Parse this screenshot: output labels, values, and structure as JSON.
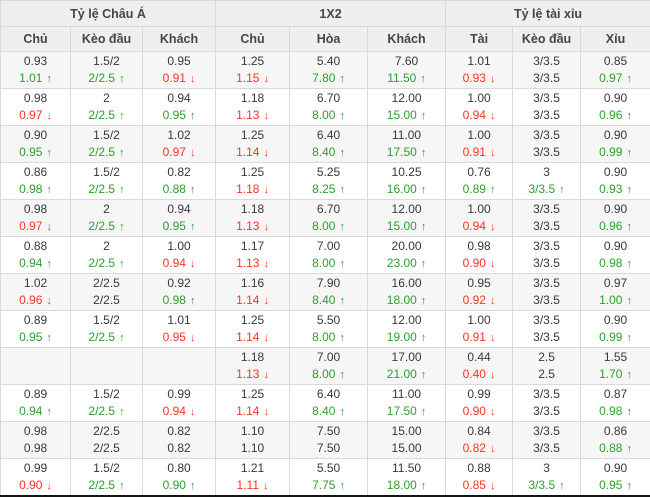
{
  "table": {
    "colors": {
      "up": "#2e9e2e",
      "down": "#ff3322",
      "header_bg": "#efefef",
      "row_alt_bg": "#f6f6f6",
      "border": "#d9d9d9",
      "text": "#383838"
    },
    "icons": {
      "up": "↑",
      "down": "↓"
    },
    "groups": [
      {
        "label": "Tỷ lệ Châu Á",
        "columns": [
          "Chủ",
          "Kèo đầu",
          "Khách"
        ]
      },
      {
        "label": "1X2",
        "columns": [
          "Chủ",
          "Hòa",
          "Khách"
        ]
      },
      {
        "label": "Tỷ lệ tài xỉu",
        "columns": [
          "Tài",
          "Kèo đầu",
          "Xỉu"
        ]
      }
    ],
    "rows": [
      {
        "cells": [
          [
            "0.93",
            "1.01",
            "up"
          ],
          [
            "1.5/2",
            "2/2.5",
            "up"
          ],
          [
            "0.95",
            "0.91",
            "down"
          ],
          [
            "1.25",
            "1.15",
            "down"
          ],
          [
            "5.40",
            "7.80",
            "up"
          ],
          [
            "7.60",
            "11.50",
            "up"
          ],
          [
            "1.01",
            "0.93",
            "down"
          ],
          [
            "3/3.5",
            "3/3.5",
            "same"
          ],
          [
            "0.85",
            "0.97",
            "up"
          ]
        ]
      },
      {
        "cells": [
          [
            "0.98",
            "0.97",
            "down"
          ],
          [
            "2",
            "2/2.5",
            "up"
          ],
          [
            "0.94",
            "0.95",
            "up"
          ],
          [
            "1.18",
            "1.13",
            "down"
          ],
          [
            "6.70",
            "8.00",
            "up"
          ],
          [
            "12.00",
            "15.00",
            "up"
          ],
          [
            "1.00",
            "0.94",
            "down"
          ],
          [
            "3/3.5",
            "3/3.5",
            "same"
          ],
          [
            "0.90",
            "0.96",
            "up"
          ]
        ]
      },
      {
        "cells": [
          [
            "0.90",
            "0.95",
            "up"
          ],
          [
            "1.5/2",
            "2/2.5",
            "up"
          ],
          [
            "1.02",
            "0.97",
            "down"
          ],
          [
            "1.25",
            "1.14",
            "down"
          ],
          [
            "6.40",
            "8.40",
            "up"
          ],
          [
            "11.00",
            "17.50",
            "up"
          ],
          [
            "1.00",
            "0.91",
            "down"
          ],
          [
            "3/3.5",
            "3/3.5",
            "same"
          ],
          [
            "0.90",
            "0.99",
            "up"
          ]
        ]
      },
      {
        "cells": [
          [
            "0.86",
            "0.98",
            "up"
          ],
          [
            "1.5/2",
            "2/2.5",
            "up"
          ],
          [
            "0.82",
            "0.88",
            "up"
          ],
          [
            "1.25",
            "1.18",
            "down"
          ],
          [
            "5.25",
            "8.25",
            "up"
          ],
          [
            "10.25",
            "16.00",
            "up"
          ],
          [
            "0.76",
            "0.89",
            "up"
          ],
          [
            "3",
            "3/3.5",
            "up"
          ],
          [
            "0.90",
            "0.93",
            "up"
          ]
        ]
      },
      {
        "cells": [
          [
            "0.98",
            "0.97",
            "down"
          ],
          [
            "2",
            "2/2.5",
            "up"
          ],
          [
            "0.94",
            "0.95",
            "up"
          ],
          [
            "1.18",
            "1.13",
            "down"
          ],
          [
            "6.70",
            "8.00",
            "up"
          ],
          [
            "12.00",
            "15.00",
            "up"
          ],
          [
            "1.00",
            "0.94",
            "down"
          ],
          [
            "3/3.5",
            "3/3.5",
            "same"
          ],
          [
            "0.90",
            "0.96",
            "up"
          ]
        ]
      },
      {
        "cells": [
          [
            "0.88",
            "0.94",
            "up"
          ],
          [
            "2",
            "2/2.5",
            "up"
          ],
          [
            "1.00",
            "0.94",
            "down"
          ],
          [
            "1.17",
            "1.13",
            "down"
          ],
          [
            "7.00",
            "8.00",
            "up"
          ],
          [
            "20.00",
            "23.00",
            "up"
          ],
          [
            "0.98",
            "0.90",
            "down"
          ],
          [
            "3/3.5",
            "3/3.5",
            "same"
          ],
          [
            "0.90",
            "0.98",
            "up"
          ]
        ]
      },
      {
        "cells": [
          [
            "1.02",
            "0.96",
            "down"
          ],
          [
            "2/2.5",
            "2/2.5",
            "same"
          ],
          [
            "0.92",
            "0.98",
            "up"
          ],
          [
            "1.16",
            "1.14",
            "down"
          ],
          [
            "7.90",
            "8.40",
            "up"
          ],
          [
            "16.00",
            "18.00",
            "up"
          ],
          [
            "0.95",
            "0.92",
            "down"
          ],
          [
            "3/3.5",
            "3/3.5",
            "same"
          ],
          [
            "0.97",
            "1.00",
            "up"
          ]
        ]
      },
      {
        "cells": [
          [
            "0.89",
            "0.95",
            "up"
          ],
          [
            "1.5/2",
            "2/2.5",
            "up"
          ],
          [
            "1.01",
            "0.95",
            "down"
          ],
          [
            "1.25",
            "1.14",
            "down"
          ],
          [
            "5.50",
            "8.00",
            "up"
          ],
          [
            "12.00",
            "19.00",
            "up"
          ],
          [
            "1.00",
            "0.91",
            "down"
          ],
          [
            "3/3.5",
            "3/3.5",
            "same"
          ],
          [
            "0.90",
            "0.99",
            "up"
          ]
        ]
      },
      {
        "cells": [
          [
            "",
            "",
            "empty"
          ],
          [
            "",
            "",
            "empty"
          ],
          [
            "",
            "",
            "empty"
          ],
          [
            "1.18",
            "1.13",
            "down"
          ],
          [
            "7.00",
            "8.00",
            "up"
          ],
          [
            "17.00",
            "21.00",
            "up"
          ],
          [
            "0.44",
            "0.40",
            "down"
          ],
          [
            "2.5",
            "2.5",
            "same"
          ],
          [
            "1.55",
            "1.70",
            "up"
          ]
        ]
      },
      {
        "cells": [
          [
            "0.89",
            "0.94",
            "up"
          ],
          [
            "1.5/2",
            "2/2.5",
            "up"
          ],
          [
            "0.99",
            "0.94",
            "down"
          ],
          [
            "1.25",
            "1.14",
            "down"
          ],
          [
            "6.40",
            "8.40",
            "up"
          ],
          [
            "11.00",
            "17.50",
            "up"
          ],
          [
            "0.99",
            "0.90",
            "down"
          ],
          [
            "3/3.5",
            "3/3.5",
            "same"
          ],
          [
            "0.87",
            "0.98",
            "up"
          ]
        ]
      },
      {
        "cells": [
          [
            "0.98",
            "0.98",
            "same"
          ],
          [
            "2/2.5",
            "2/2.5",
            "same"
          ],
          [
            "0.82",
            "0.82",
            "same"
          ],
          [
            "1.10",
            "1.10",
            "same"
          ],
          [
            "7.50",
            "7.50",
            "same"
          ],
          [
            "15.00",
            "15.00",
            "same"
          ],
          [
            "0.84",
            "0.82",
            "down"
          ],
          [
            "3/3.5",
            "3/3.5",
            "same"
          ],
          [
            "0.86",
            "0.88",
            "up"
          ]
        ]
      },
      {
        "cells": [
          [
            "0.99",
            "0.90",
            "down"
          ],
          [
            "1.5/2",
            "2/2.5",
            "up"
          ],
          [
            "0.80",
            "0.90",
            "up"
          ],
          [
            "1.21",
            "1.11",
            "down"
          ],
          [
            "5.50",
            "7.75",
            "up"
          ],
          [
            "11.50",
            "18.00",
            "up"
          ],
          [
            "0.88",
            "0.85",
            "down"
          ],
          [
            "3",
            "3/3.5",
            "up"
          ],
          [
            "0.90",
            "0.95",
            "up"
          ]
        ]
      }
    ]
  }
}
